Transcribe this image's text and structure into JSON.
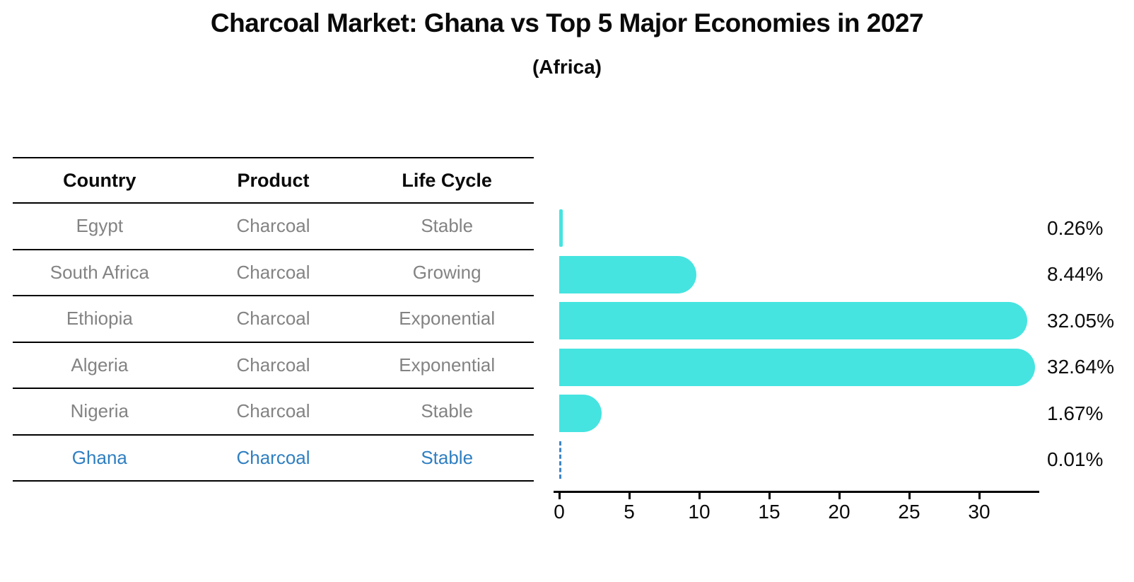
{
  "title": "Charcoal Market: Ghana vs Top 5 Major Economies in 2027",
  "subtitle": "(Africa)",
  "colors": {
    "bar": "#45e4e0",
    "highlight_blue": "#2f7fc1",
    "table_text_gray": "#838383",
    "axis_black": "#000000"
  },
  "table": {
    "columns": [
      "Country",
      "Product",
      "Life Cycle"
    ],
    "rows": [
      {
        "country": "Egypt",
        "product": "Charcoal",
        "life_cycle": "Stable",
        "highlight": false
      },
      {
        "country": "South Africa",
        "product": "Charcoal",
        "life_cycle": "Growing",
        "highlight": false
      },
      {
        "country": "Ethiopia",
        "product": "Charcoal",
        "life_cycle": "Exponential",
        "highlight": false
      },
      {
        "country": "Algeria",
        "product": "Charcoal",
        "life_cycle": "Exponential",
        "highlight": false
      },
      {
        "country": "Nigeria",
        "product": "Charcoal",
        "life_cycle": "Stable",
        "highlight": false
      },
      {
        "country": "Ghana",
        "product": "Charcoal",
        "life_cycle": "Stable",
        "highlight": true
      }
    ]
  },
  "chart_data": {
    "type": "bar",
    "orientation": "horizontal",
    "categories": [
      "Egypt",
      "South Africa",
      "Ethiopia",
      "Algeria",
      "Nigeria",
      "Ghana"
    ],
    "values": [
      0.26,
      8.44,
      32.05,
      32.64,
      1.67,
      0.01
    ],
    "value_labels": [
      "0.26%",
      "8.44%",
      "32.05%",
      "32.64%",
      "1.67%",
      "0.01%"
    ],
    "x_ticks": [
      0,
      5,
      10,
      15,
      20,
      25,
      30
    ],
    "xlim": [
      0,
      34.3
    ],
    "xlabel": "",
    "ylabel": "",
    "grid": false,
    "legend": false,
    "highlight_category": "Ghana",
    "highlight_style": "dashed-blue-line",
    "bar_color": "#45e4e0",
    "value_label_position": "right-of-plot"
  }
}
